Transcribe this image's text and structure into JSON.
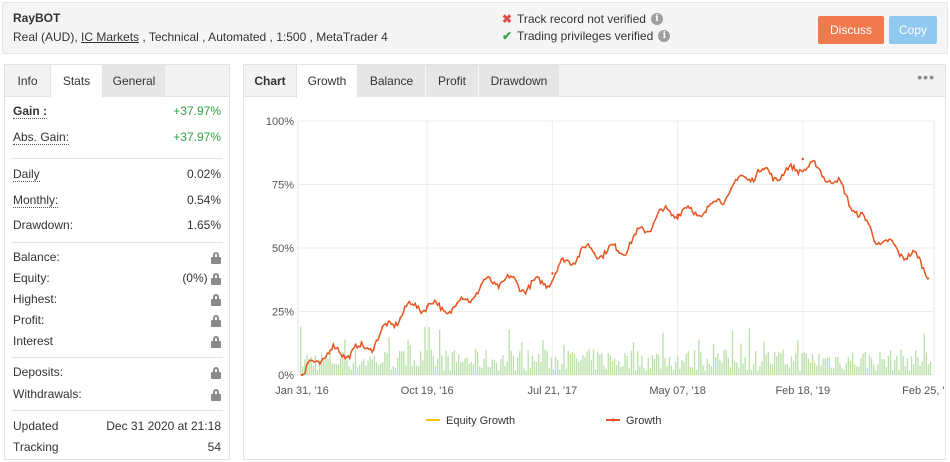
{
  "header": {
    "system_name": "RayBOT",
    "meta_prefix": "Real (AUD), ",
    "broker": "IC Markets",
    "meta_suffix": " , Technical , Automated , 1:500 , MetaTrader 4",
    "verification": [
      {
        "status": "fail",
        "text": "Track record not verified"
      },
      {
        "status": "pass",
        "text": "Trading privileges verified"
      }
    ],
    "discuss_label": "Discuss",
    "copy_label": "Copy"
  },
  "left_tabs": [
    "Info",
    "Stats",
    "General"
  ],
  "stats": {
    "gain_label": "Gain :",
    "gain_value": "+37.97%",
    "abs_gain_label": "Abs. Gain:",
    "abs_gain_value": "+37.97%",
    "daily_label": "Daily",
    "daily_value": "0.02%",
    "monthly_label": "Monthly:",
    "monthly_value": "0.54%",
    "drawdown_label": "Drawdown:",
    "drawdown_value": "1.65%",
    "balance_label": "Balance:",
    "equity_label": "Equity:",
    "equity_value": "(0%)",
    "highest_label": "Highest:",
    "profit_label": "Profit:",
    "interest_label": "Interest",
    "deposits_label": "Deposits:",
    "withdrawals_label": "Withdrawals:",
    "updated_label": "Updated",
    "updated_value": "Dec 31 2020 at 21:18",
    "tracking_label": "Tracking",
    "tracking_value": "54"
  },
  "chart_tabs": {
    "chart": "Chart",
    "growth": "Growth",
    "balance": "Balance",
    "profit": "Profit",
    "drawdown": "Drawdown",
    "more": "•••"
  },
  "chart_data": {
    "type": "line",
    "y_unit": "%",
    "ylim": [
      0,
      100
    ],
    "y_ticks": [
      "0%",
      "25%",
      "50%",
      "75%",
      "100%"
    ],
    "x_tick_labels": [
      "Jan 31, '16",
      "Oct 19, '16",
      "Jul 21, '17",
      "May 07, '18",
      "Feb 18, '19",
      "Feb 25, '..."
    ],
    "grid": true,
    "legend_placement": "bottom",
    "series": [
      {
        "name": "Equity Growth",
        "color": "#f5c400",
        "x": [
          "Jan 31, '16",
          "Oct 19, '16",
          "Jul 21, '17",
          "May 07, '18",
          "Feb 18, '19",
          "Feb 25, '..."
        ],
        "values": [
          0,
          27,
          40,
          63,
          85,
          38
        ]
      },
      {
        "name": "Growth",
        "color": "#e8532b",
        "x": [
          "Jan 31, '16",
          "Oct 19, '16",
          "Jul 21, '17",
          "May 07, '18",
          "Feb 18, '19",
          "Feb 25, '..."
        ],
        "values": [
          0,
          27,
          40,
          63,
          85,
          38
        ]
      }
    ],
    "bar_color": "#b8e0a8"
  }
}
